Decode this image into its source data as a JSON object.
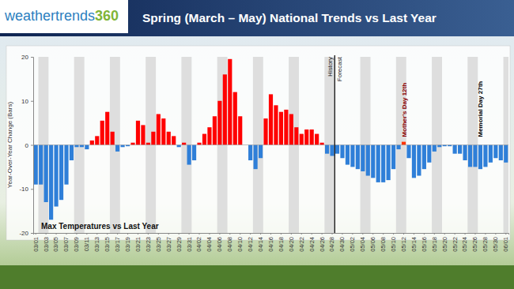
{
  "chart_data": {
    "type": "bar",
    "title": "Spring (March – May) National Trends vs Last Year",
    "logo": [
      "weathertrends",
      "360"
    ],
    "ylabel": "Year-Over-Year Change (Bars)",
    "subtitle": "Max Temperatures vs Last Year",
    "divider": {
      "x": 58.5,
      "before": "History",
      "after": "Forecast"
    },
    "annotations": [
      {
        "text": "Mother's Day 12th",
        "x": 72,
        "color": "#8b0000"
      },
      {
        "text": "Memorial Day 27th",
        "x": 87,
        "color": "#000000"
      }
    ],
    "categories": [
      "03/01",
      null,
      "03/03",
      null,
      "03/05",
      null,
      "03/07",
      null,
      "03/09",
      null,
      "03/11",
      null,
      "03/13",
      null,
      "03/15",
      null,
      "03/17",
      null,
      "03/19",
      null,
      "03/21",
      null,
      "03/23",
      null,
      "03/25",
      null,
      "03/27",
      null,
      "03/29",
      null,
      "03/31",
      null,
      "04/02",
      null,
      "04/04",
      null,
      "04/06",
      null,
      "04/08",
      null,
      "04/10",
      null,
      "04/12",
      null,
      "04/14",
      null,
      "04/16",
      null,
      "04/18",
      null,
      "04/20",
      null,
      "04/22",
      null,
      "04/24",
      null,
      "04/26",
      null,
      "04/28",
      null,
      "04/30",
      null,
      "05/02",
      null,
      "05/04",
      null,
      "05/06",
      null,
      "05/08",
      null,
      "05/10",
      null,
      "05/12",
      null,
      "05/14",
      null,
      "05/16",
      null,
      "05/18",
      null,
      "05/20",
      null,
      "05/22",
      null,
      "05/24",
      null,
      "05/26",
      null,
      "05/28",
      null,
      "05/30",
      null,
      "06/01"
    ],
    "values": [
      -9,
      -9,
      -13,
      -17,
      -14,
      -12.5,
      -9,
      -3.5,
      -0.5,
      -0.5,
      -1,
      1,
      2,
      5.5,
      7.5,
      3,
      -1.5,
      -0.5,
      -0.3,
      0.5,
      5.5,
      4.5,
      0.5,
      3,
      7,
      6,
      3,
      2,
      -0.5,
      0.5,
      -4.5,
      -3.5,
      0.5,
      2.5,
      4,
      6.5,
      10,
      16,
      19.5,
      12,
      6.5,
      0,
      -3.5,
      -5.5,
      -3,
      6,
      11.5,
      9,
      7.5,
      8,
      7,
      4,
      2.5,
      3.5,
      3.5,
      2.5,
      0.5,
      -2,
      -2.5,
      -2,
      -3,
      -4.5,
      -5,
      -5.5,
      -6,
      -7,
      -7.5,
      -8.5,
      -8.5,
      -8,
      -5.5,
      -1,
      0.7,
      -3,
      -7.5,
      -7,
      -5.5,
      -4,
      -1.5,
      -0.5,
      -0.3,
      -0.3,
      -2,
      -2,
      -3.5,
      -5,
      -5,
      -5.5,
      -5,
      -4,
      -3,
      -3.5,
      -4
    ],
    "colors": [
      "#2f7fd8",
      "#2f7fd8",
      "#2f7fd8",
      "#2f7fd8",
      "#2f7fd8",
      "#2f7fd8",
      "#2f7fd8",
      "#2f7fd8",
      "#2f7fd8",
      "#2f7fd8",
      "#2f7fd8",
      "#ff0000",
      "#ff0000",
      "#ff0000",
      "#ff0000",
      "#ff0000",
      "#2f7fd8",
      "#2f7fd8",
      "#2f7fd8",
      "#ff0000",
      "#ff0000",
      "#ff0000",
      "#ff0000",
      "#ff0000",
      "#ff0000",
      "#ff0000",
      "#ff0000",
      "#ff0000",
      "#2f7fd8",
      "#ff0000",
      "#2f7fd8",
      "#2f7fd8",
      "#ff0000",
      "#ff0000",
      "#ff0000",
      "#ff0000",
      "#ff0000",
      "#ff0000",
      "#ff0000",
      "#ff0000",
      "#ff0000",
      "#2f7fd8",
      "#2f7fd8",
      "#2f7fd8",
      "#2f7fd8",
      "#ff0000",
      "#ff0000",
      "#ff0000",
      "#ff0000",
      "#ff0000",
      "#ff0000",
      "#ff0000",
      "#ff0000",
      "#ff0000",
      "#ff0000",
      "#ff0000",
      "#ff0000",
      "#2f7fd8",
      "#2f7fd8",
      "#2f7fd8",
      "#2f7fd8",
      "#2f7fd8",
      "#2f7fd8",
      "#2f7fd8",
      "#2f7fd8",
      "#2f7fd8",
      "#2f7fd8",
      "#2f7fd8",
      "#2f7fd8",
      "#2f7fd8",
      "#2f7fd8",
      "#2f7fd8",
      "#ff3300",
      "#2f7fd8",
      "#2f7fd8",
      "#2f7fd8",
      "#2f7fd8",
      "#2f7fd8",
      "#2f7fd8",
      "#2f7fd8",
      "#2f7fd8",
      "#2f7fd8",
      "#2f7fd8",
      "#2f7fd8",
      "#2f7fd8",
      "#2f7fd8",
      "#2f7fd8",
      "#2f7fd8",
      "#2f7fd8",
      "#2f7fd8",
      "#2f7fd8",
      "#2f7fd8",
      "#2f7fd8"
    ],
    "ylim": [
      -20,
      20
    ],
    "yticks": [
      -20,
      -10,
      0,
      10,
      20
    ],
    "grid": false
  }
}
